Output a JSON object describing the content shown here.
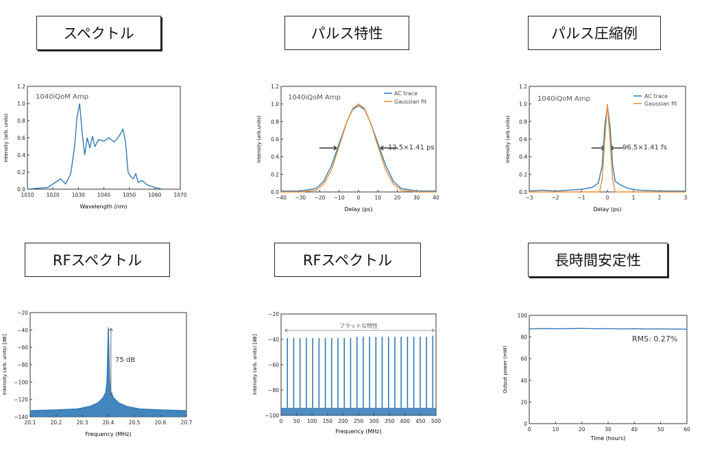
{
  "panels": [
    {
      "label": "スペクトル"
    },
    {
      "label": "パルス特性"
    },
    {
      "label": "パルス圧縮例"
    },
    {
      "label": "RFスペクトル"
    },
    {
      "label": "RFスペクトル"
    },
    {
      "label": "長時間安定性"
    }
  ],
  "colors": {
    "trace": "#2f79b6",
    "fit": "#ee8a35",
    "axis": "#333333"
  },
  "chart_data": [
    {
      "type": "line",
      "inset_text": "1040iQoM Amp",
      "xlabel": "Wavelength (nm)",
      "ylabel": "Intensity (arb. units)",
      "xlim": [
        1010,
        1070
      ],
      "ylim": [
        0,
        1.2
      ],
      "xticks": [
        "1010",
        "1020",
        "1030",
        "1040",
        "1050",
        "1060",
        "1070"
      ],
      "yticks": [
        "0.0",
        "0.2",
        "0.4",
        "0.6",
        "0.8",
        "1.0",
        "1.2"
      ],
      "series": [
        {
          "x": [
            1010,
            1018,
            1021,
            1023,
            1025,
            1027,
            1028.5,
            1029.5,
            1030.5,
            1031.5,
            1032.5,
            1033.5,
            1034.5,
            1035.5,
            1036.5,
            1038,
            1040,
            1042,
            1044,
            1046,
            1047.5,
            1048.5,
            1049.5,
            1050.5,
            1051.5,
            1052.5,
            1053.5,
            1055,
            1057,
            1060,
            1063
          ],
          "y": [
            0,
            0.02,
            0.08,
            0.12,
            0.06,
            0.18,
            0.5,
            0.85,
            1.0,
            0.65,
            0.4,
            0.6,
            0.48,
            0.62,
            0.5,
            0.58,
            0.56,
            0.6,
            0.55,
            0.62,
            0.7,
            0.55,
            0.2,
            0.15,
            0.12,
            0.18,
            0.08,
            0.1,
            0.05,
            0.02,
            0.0
          ]
        }
      ]
    },
    {
      "type": "line",
      "inset_text": "1040iQoM Amp",
      "legend": [
        "AC trace",
        "Gaussian fit"
      ],
      "annotation": "12.5×1.41 ps",
      "xlabel": "Delay (ps)",
      "ylabel": "Intensity (arb.units)",
      "xlim": [
        -40,
        40
      ],
      "ylim": [
        0,
        1.2
      ],
      "xticks": [
        "−40",
        "−30",
        "−20",
        "−10",
        "0",
        "10",
        "20",
        "30",
        "40"
      ],
      "yticks": [
        "0.0",
        "0.2",
        "0.4",
        "0.6",
        "0.8",
        "1.0",
        "1.2"
      ],
      "series": [
        {
          "x": [
            -40,
            -30,
            -22,
            -18,
            -14,
            -10,
            -6,
            -3,
            0,
            3,
            6,
            10,
            14,
            18,
            22,
            30,
            40
          ],
          "y": [
            0.01,
            0.01,
            0.04,
            0.12,
            0.3,
            0.55,
            0.8,
            0.94,
            0.98,
            0.94,
            0.8,
            0.55,
            0.3,
            0.12,
            0.04,
            0.01,
            0.01
          ]
        },
        {
          "x": [
            -40,
            -30,
            -22,
            -18,
            -14,
            -10,
            -6,
            -3,
            0,
            3,
            6,
            10,
            14,
            18,
            22,
            30,
            40
          ],
          "y": [
            0,
            0,
            0.02,
            0.09,
            0.25,
            0.52,
            0.8,
            0.95,
            1.0,
            0.95,
            0.8,
            0.52,
            0.25,
            0.09,
            0.02,
            0,
            0
          ]
        }
      ]
    },
    {
      "type": "line",
      "inset_text": "1040iQoM Amp",
      "legend": [
        "AC trace",
        "Gaussian fit"
      ],
      "annotation": "96.5×1.41 fs",
      "xlabel": "Delay (ps)",
      "ylabel": "Intensity (arb.units)",
      "xlim": [
        -3,
        3
      ],
      "ylim": [
        0,
        1.2
      ],
      "xticks": [
        "−3",
        "−2",
        "−1",
        "0",
        "1",
        "2",
        "3"
      ],
      "yticks": [
        "0.0",
        "0.2",
        "0.4",
        "0.6",
        "0.8",
        "1.0",
        "1.2"
      ],
      "series": [
        {
          "x": [
            -3,
            -2.5,
            -2,
            -1.5,
            -1,
            -0.6,
            -0.35,
            -0.2,
            -0.1,
            0,
            0.1,
            0.2,
            0.3,
            0.5,
            0.8,
            1.2,
            2,
            3
          ],
          "y": [
            0.01,
            0.02,
            0.01,
            0.02,
            0.03,
            0.05,
            0.1,
            0.3,
            0.75,
            0.98,
            0.75,
            0.3,
            0.12,
            0.08,
            0.04,
            0.02,
            0.01,
            0.01
          ]
        },
        {
          "x": [
            -3,
            -0.3,
            -0.2,
            -0.1,
            0,
            0.1,
            0.2,
            0.3,
            3
          ],
          "y": [
            0,
            0,
            0.15,
            0.6,
            1.0,
            0.6,
            0.15,
            0,
            0
          ]
        }
      ]
    },
    {
      "type": "line",
      "annotation": "75 dB",
      "xlabel": "Frequency (MHz)",
      "ylabel": "Intensity (arb. units) [dB]",
      "xlim": [
        20.1,
        20.7
      ],
      "ylim": [
        -140,
        -20
      ],
      "xticks": [
        "20.1",
        "20.2",
        "20.3",
        "20.4",
        "20.5",
        "20.6",
        "20.7"
      ],
      "yticks": [
        "−140",
        "−120",
        "−100",
        "−80",
        "−60",
        "−40",
        "−20"
      ],
      "series": [
        {
          "x": [
            20.1,
            20.2,
            20.28,
            20.33,
            20.36,
            20.38,
            20.39,
            20.395,
            20.4,
            20.405,
            20.41,
            20.42,
            20.44,
            20.47,
            20.52,
            20.6,
            20.7
          ],
          "y": [
            -133,
            -132,
            -131,
            -128,
            -124,
            -118,
            -112,
            -100,
            -37,
            -100,
            -112,
            -118,
            -124,
            -128,
            -131,
            -132,
            -133
          ]
        }
      ]
    },
    {
      "type": "bar",
      "annotation": "フラットな特性",
      "xlabel": "Frequency (MHz)",
      "ylabel": "Intensity (arb. units) [dB]",
      "xlim": [
        0,
        500
      ],
      "ylim": [
        -100,
        -20
      ],
      "xticks": [
        "0",
        "50",
        "100",
        "150",
        "200",
        "250",
        "300",
        "350",
        "400",
        "450",
        "500"
      ],
      "yticks": [
        "−100",
        "−80",
        "−60",
        "−40",
        "−20"
      ],
      "floor": -94,
      "x": [
        20.4,
        40.8,
        61.2,
        81.6,
        102,
        122.4,
        142.8,
        163.2,
        183.6,
        204,
        224.4,
        244.8,
        265.2,
        285.6,
        306,
        326.4,
        346.8,
        367.2,
        387.6,
        408,
        428.4,
        448.8,
        469.2,
        489.6
      ],
      "values": [
        -39,
        -39,
        -39,
        -39,
        -39,
        -39,
        -39,
        -39,
        -39,
        -39,
        -39,
        -38,
        -38,
        -38,
        -38,
        -38,
        -38,
        -38,
        -38,
        -38,
        -38,
        -38,
        -38,
        -37
      ]
    },
    {
      "type": "line",
      "annotation": "RMS: 0.27%",
      "xlabel": "Time (hours)",
      "ylabel": "Output power (mW)",
      "xlim": [
        0,
        60
      ],
      "ylim": [
        0,
        100
      ],
      "xticks": [
        "0",
        "10",
        "20",
        "30",
        "40",
        "50",
        "60"
      ],
      "yticks": [
        "0",
        "20",
        "40",
        "60",
        "80",
        "100"
      ],
      "series": [
        {
          "x": [
            0,
            5,
            10,
            15,
            20,
            25,
            30,
            35,
            40,
            45,
            50,
            55,
            60
          ],
          "y": [
            87.5,
            87.8,
            87.6,
            87.7,
            87.9,
            87.6,
            87.7,
            87.5,
            87.6,
            87.4,
            87.5,
            87.3,
            87.2
          ]
        }
      ]
    }
  ]
}
